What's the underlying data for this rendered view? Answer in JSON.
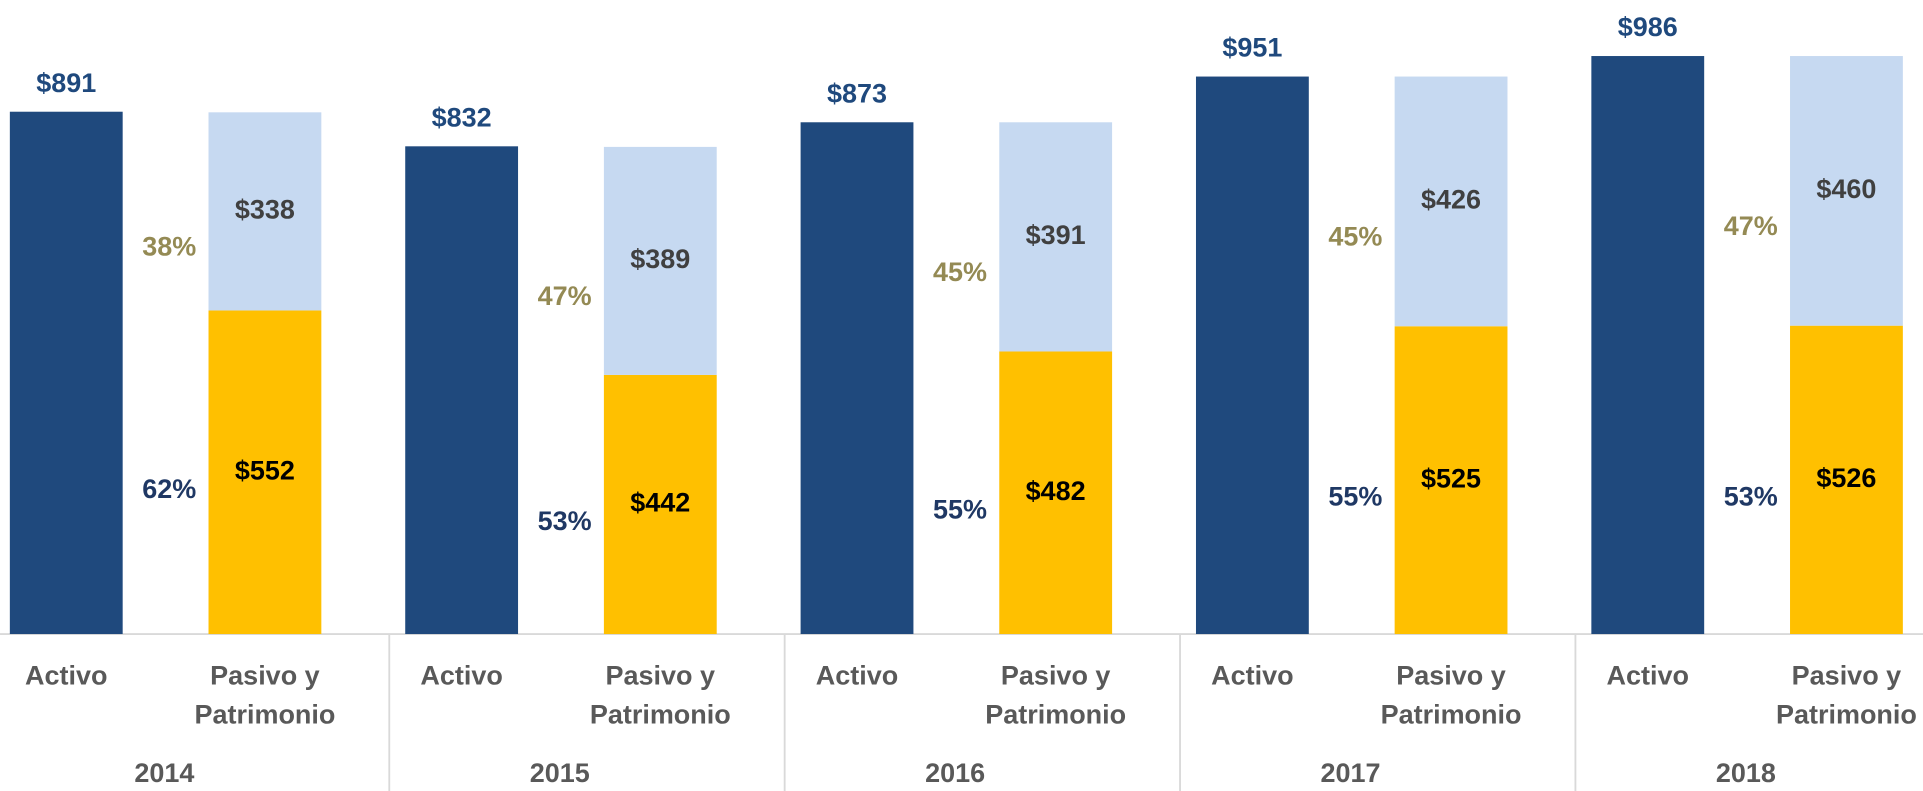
{
  "chart_data": {
    "type": "grouped-stacked-bar",
    "categories": [
      "2014",
      "2015",
      "2016",
      "2017",
      "2018"
    ],
    "sub_categories": [
      "Activo",
      "Pasivo y Patrimonio"
    ],
    "series": [
      {
        "color": "#1f497d",
        "label_color": "#1f497d",
        "values": [
          891,
          832,
          873,
          951,
          986
        ],
        "value_labels": [
          "$891",
          "$832",
          "$873",
          "$951",
          "$986"
        ]
      },
      {
        "color": "#ffc000",
        "label_color": "#000000",
        "values": [
          552,
          442,
          482,
          525,
          526
        ],
        "value_labels": [
          "$552",
          "$442",
          "$482",
          "$525",
          "$526"
        ],
        "shares": [
          62,
          53,
          55,
          55,
          53
        ],
        "share_labels": [
          "62%",
          "53%",
          "55%",
          "55%",
          "53%"
        ],
        "share_color": "#1f3864"
      },
      {
        "color": "#c6d9f1",
        "label_color": "#404040",
        "values": [
          338,
          389,
          391,
          426,
          460
        ],
        "value_labels": [
          "$338",
          "$389",
          "$391",
          "$426",
          "$460"
        ],
        "shares": [
          38,
          47,
          45,
          45,
          47
        ],
        "share_labels": [
          "38%",
          "47%",
          "45%",
          "45%",
          "47%"
        ],
        "share_color": "#948a54"
      }
    ]
  }
}
